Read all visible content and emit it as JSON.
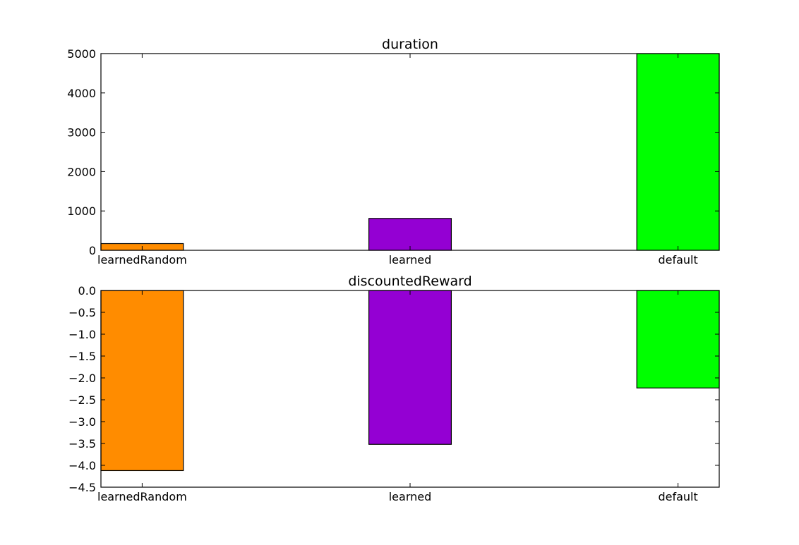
{
  "chart_data": [
    {
      "type": "bar",
      "title": "duration",
      "xlabel": "",
      "ylabel": "",
      "categories": [
        "learnedRandom",
        "learned",
        "default"
      ],
      "values": [
        170,
        810,
        5000
      ],
      "colors": [
        "#FF8C00",
        "#9400D3",
        "#00FF00"
      ],
      "ylim": [
        0,
        5000
      ],
      "yticks": [
        0,
        1000,
        2000,
        3000,
        4000,
        5000
      ],
      "ytick_labels": [
        "0",
        "1000",
        "2000",
        "3000",
        "4000",
        "5000"
      ],
      "grid": false,
      "legend": "none"
    },
    {
      "type": "bar",
      "title": "discountedReward",
      "xlabel": "",
      "ylabel": "",
      "categories": [
        "learnedRandom",
        "learned",
        "default"
      ],
      "values": [
        -4.12,
        -3.52,
        -2.23
      ],
      "colors": [
        "#FF8C00",
        "#9400D3",
        "#00FF00"
      ],
      "ylim": [
        -4.5,
        0.0
      ],
      "yticks": [
        0.0,
        -0.5,
        -1.0,
        -1.5,
        -2.0,
        -2.5,
        -3.0,
        -3.5,
        -4.0,
        -4.5
      ],
      "ytick_labels": [
        "0.0",
        "−0.5",
        "−1.0",
        "−1.5",
        "−2.0",
        "−2.5",
        "−3.0",
        "−3.5",
        "−4.0",
        "−4.5"
      ],
      "grid": false,
      "legend": "none"
    }
  ]
}
